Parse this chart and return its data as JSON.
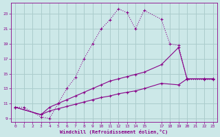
{
  "xlabel": "Windchill (Refroidissement éolien,°C)",
  "bg_color": "#cce8e8",
  "grid_color": "#aacccc",
  "line_color": "#880088",
  "xlim": [
    -0.5,
    23.5
  ],
  "ylim": [
    8.5,
    24.5
  ],
  "xticks": [
    0,
    1,
    2,
    3,
    4,
    5,
    6,
    7,
    8,
    9,
    10,
    11,
    12,
    13,
    14,
    15,
    17,
    18,
    19,
    20,
    21,
    22,
    23
  ],
  "yticks": [
    9,
    11,
    13,
    15,
    17,
    19,
    21,
    23
  ],
  "series1_x": [
    0,
    1,
    3,
    4,
    5,
    6,
    7,
    8,
    9,
    10,
    11,
    12,
    13,
    14,
    15,
    17,
    18,
    19,
    20,
    22,
    23
  ],
  "series1_y": [
    10.5,
    10.5,
    9.2,
    9.0,
    11.0,
    13.0,
    14.5,
    17.0,
    19.0,
    21.0,
    22.2,
    23.7,
    23.2,
    21.0,
    23.5,
    22.3,
    19.0,
    18.8,
    14.2,
    14.2,
    14.2
  ],
  "series2_x": [
    0,
    3,
    4,
    5,
    6,
    7,
    8,
    9,
    10,
    11,
    12,
    13,
    14,
    15,
    17,
    19,
    20,
    22,
    23
  ],
  "series2_y": [
    10.5,
    9.5,
    10.5,
    11.0,
    11.5,
    12.0,
    12.5,
    13.0,
    13.5,
    14.0,
    14.3,
    14.6,
    14.9,
    15.2,
    16.2,
    18.5,
    14.3,
    14.3,
    14.3
  ],
  "series3_x": [
    0,
    3,
    4,
    5,
    6,
    7,
    8,
    9,
    10,
    11,
    12,
    13,
    14,
    15,
    17,
    19,
    20,
    22,
    23
  ],
  "series3_y": [
    10.5,
    9.5,
    10.0,
    10.3,
    10.6,
    10.9,
    11.2,
    11.5,
    11.8,
    12.0,
    12.3,
    12.5,
    12.7,
    13.0,
    13.7,
    13.5,
    14.3,
    14.3,
    14.3
  ]
}
